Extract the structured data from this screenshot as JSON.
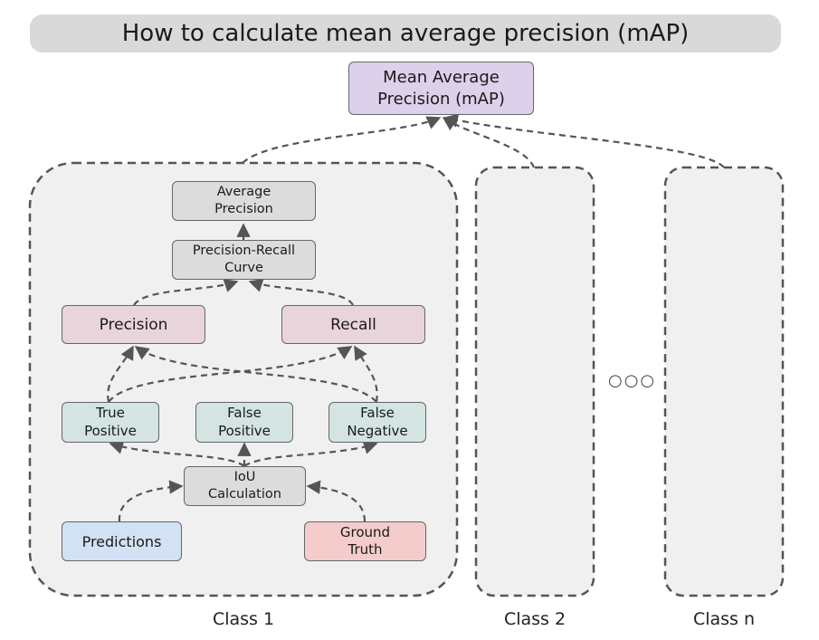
{
  "title": "How to calculate mean average precision (mAP)",
  "top": {
    "map": "Mean Average\nPrecision (mAP)"
  },
  "class1": {
    "label": "Class 1",
    "average_precision": "Average\nPrecision",
    "pr_curve": "Precision-Recall\nCurve",
    "precision": "Precision",
    "recall": "Recall",
    "true_positive": "True\nPositive",
    "false_positive": "False\nPositive",
    "false_negative": "False\nNegative",
    "iou": "IoU\nCalculation",
    "predictions": "Predictions",
    "ground_truth": "Ground\nTruth"
  },
  "class2": {
    "label": "Class 2"
  },
  "classn": {
    "label": "Class n"
  },
  "ellipsis": "○○○",
  "colors": {
    "title_bg": "#d9d9d9",
    "map_box": "#dcd0ea",
    "gray_box": "#dcdcdc",
    "pink_box": "#ead4dc",
    "teal_box": "#d3e4e2",
    "blue_box": "#d2e1f4",
    "salmon_box": "#f4cccc",
    "class_container": "#f0f0f0",
    "connector": "#555555"
  }
}
